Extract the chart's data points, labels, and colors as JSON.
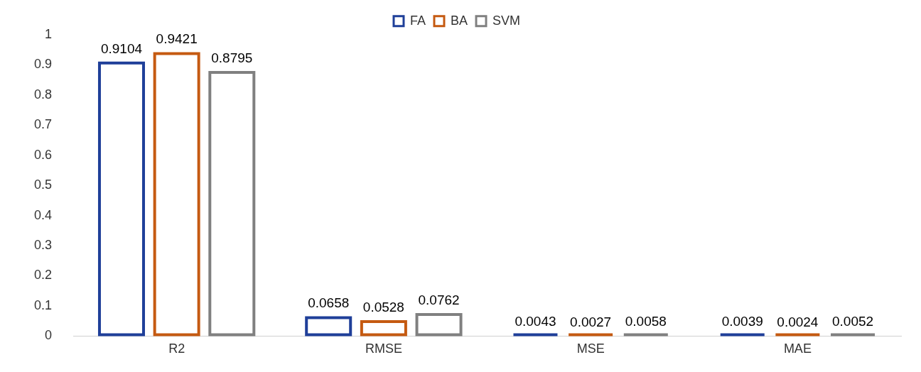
{
  "chart_data": {
    "type": "bar",
    "categories": [
      "R2",
      "RMSE",
      "MSE",
      "MAE"
    ],
    "series": [
      {
        "name": "FA",
        "color": "#1f3f99",
        "values": [
          0.9104,
          0.0658,
          0.0043,
          0.0039
        ]
      },
      {
        "name": "BA",
        "color": "#c55a11",
        "values": [
          0.9421,
          0.0528,
          0.0027,
          0.0024
        ]
      },
      {
        "name": "SVM",
        "color": "#808080",
        "values": [
          0.8795,
          0.0762,
          0.0058,
          0.0052
        ]
      }
    ],
    "ylim": [
      0,
      1
    ],
    "yticks": [
      0,
      0.1,
      0.2,
      0.3,
      0.4,
      0.5,
      0.6,
      0.7,
      0.8,
      0.9,
      1
    ],
    "grid": false,
    "legend": "top",
    "data_labels": true
  }
}
